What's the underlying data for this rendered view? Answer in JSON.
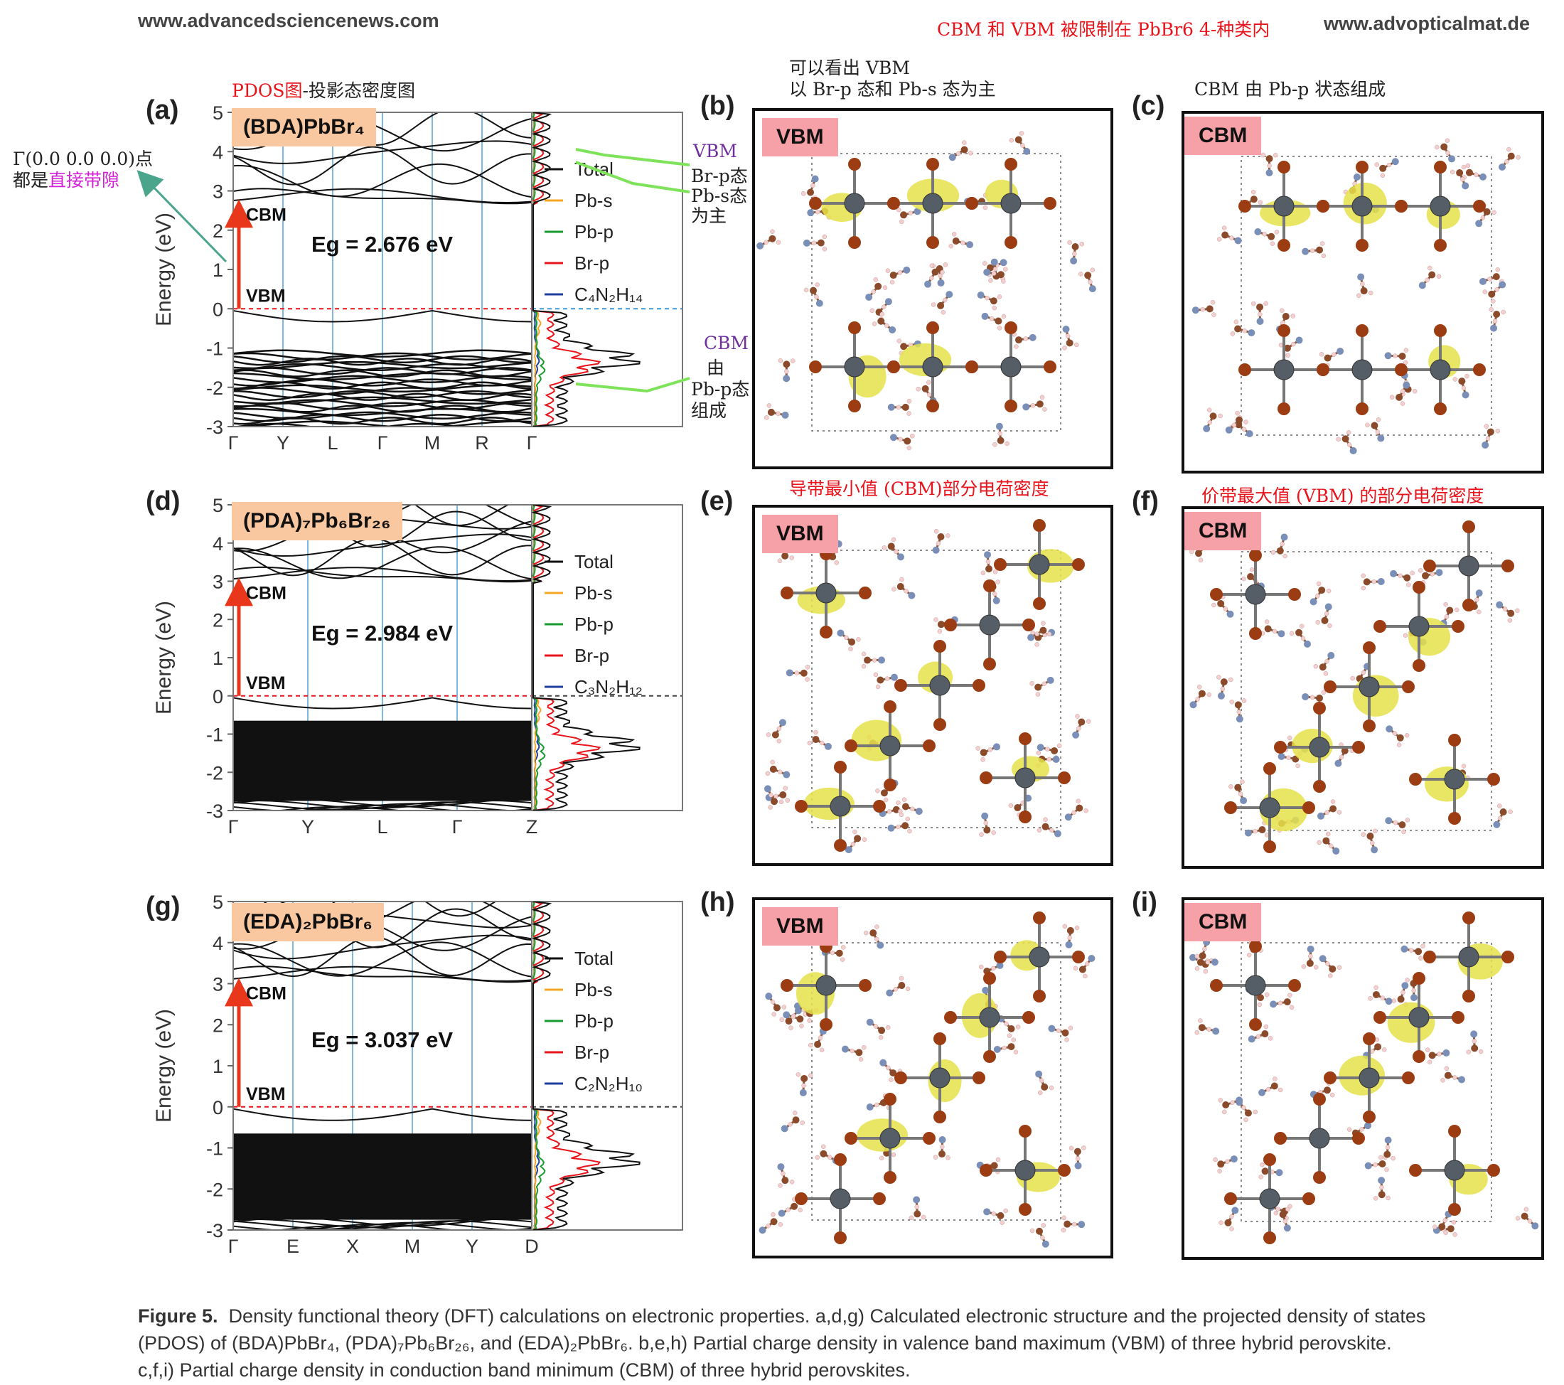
{
  "header": {
    "left_url": "www.advancedsciencenews.com",
    "right_url": "www.advopticalmat.de",
    "annotation_top": "CBM 和 VBM 被限制在 PbBr6 4-种类内"
  },
  "annotations": {
    "pdos_title_red": "PDOS图",
    "pdos_title_rest": "-投影态密度图",
    "gamma_line1": "Γ(0.0 0.0 0.0)点",
    "gamma_line2_prefix": "都是",
    "gamma_line2_highlight": "直接带隙",
    "vbm_note_line1": "可以看出 VBM",
    "vbm_note_line2": "以 Br-p 态和 Pb-s 态为主",
    "cbm_note": "CBM 由 Pb-p 状态组成",
    "side_vbm": "VBM",
    "side_vbm_l1": "Br-p态",
    "side_vbm_l2": "Pb-s态",
    "side_vbm_l3": "为主",
    "side_cbm": "CBM",
    "side_cbm_l1": "由",
    "side_cbm_l2": "Pb-p态",
    "side_cbm_l3": "组成",
    "cbm_charge_note": "导带最小值 (CBM)部分电荷密度",
    "vbm_charge_note": "价带最大值 (VBM) 的部分电荷密度"
  },
  "panels": {
    "a": {
      "label": "(a)",
      "compound": "(BDA)PbBr₄",
      "eg": "Eg = 2.676 eV",
      "cbm_label": "CBM",
      "vbm_label": "VBM",
      "ylabel": "Energy (eV)"
    },
    "b": {
      "label": "(b)",
      "badge": "VBM"
    },
    "c": {
      "label": "(c)",
      "badge": "CBM"
    },
    "d": {
      "label": "(d)",
      "compound": "(PDA)₇Pb₆Br₂₆",
      "eg": "Eg = 2.984 eV",
      "cbm_label": "CBM",
      "vbm_label": "VBM",
      "ylabel": "Energy (eV)"
    },
    "e": {
      "label": "(e)",
      "badge": "VBM"
    },
    "f": {
      "label": "(f)",
      "badge": "CBM"
    },
    "g": {
      "label": "(g)",
      "compound": "(EDA)₂PbBr₆",
      "eg": "Eg = 3.037 eV",
      "cbm_label": "CBM",
      "vbm_label": "VBM",
      "ylabel": "Energy (eV)"
    },
    "h": {
      "label": "(h)",
      "badge": "VBM"
    },
    "i": {
      "label": "(i)",
      "badge": "CBM"
    }
  },
  "chart_data": [
    {
      "type": "line",
      "panel": "a",
      "ylabel": "Energy (eV)",
      "ylim": [
        -3,
        5
      ],
      "yticks": [
        "5",
        "4",
        "3",
        "2",
        "1",
        "0",
        "-1",
        "-2",
        "-3"
      ],
      "kpoints": [
        "Γ",
        "Y",
        "L",
        "Γ",
        "M",
        "R",
        "Γ"
      ],
      "band_gap_eV": 2.676,
      "cbm_eV": 2.676,
      "vbm_eV": 0,
      "legend": [
        "Total",
        "Pb-s",
        "Pb-p",
        "Br-p",
        "C₄N₂H₁₄"
      ]
    },
    {
      "type": "line",
      "panel": "d",
      "ylabel": "Energy (eV)",
      "ylim": [
        -3,
        5
      ],
      "yticks": [
        "5",
        "4",
        "3",
        "2",
        "1",
        "0",
        "-1",
        "-2",
        "-3"
      ],
      "kpoints": [
        "Γ",
        "Y",
        "L",
        "Γ",
        "Z"
      ],
      "band_gap_eV": 2.984,
      "cbm_eV": 2.984,
      "vbm_eV": 0,
      "legend": [
        "Total",
        "Pb-s",
        "Pb-p",
        "Br-p",
        "C₃N₂H₁₂"
      ]
    },
    {
      "type": "line",
      "panel": "g",
      "ylabel": "Energy (eV)",
      "ylim": [
        -3,
        5
      ],
      "yticks": [
        "5",
        "4",
        "3",
        "2",
        "1",
        "0",
        "-1",
        "-2",
        "-3"
      ],
      "kpoints": [
        "Γ",
        "E",
        "X",
        "M",
        "Y",
        "D"
      ],
      "band_gap_eV": 3.037,
      "cbm_eV": 3.037,
      "vbm_eV": 0,
      "legend": [
        "Total",
        "Pb-s",
        "Pb-p",
        "Br-p",
        "C₂N₂H₁₀"
      ]
    }
  ],
  "colors": {
    "total": "#111111",
    "pb_s": "#f5a623",
    "pb_p": "#1a9b2f",
    "br_p": "#e8141b",
    "organic": "#1f3fa0",
    "cbm_arrow": "#e8371b",
    "kline": "#7fb9de",
    "charge": "#e6e24a",
    "pb_atom": "#555e66",
    "br_atom": "#9b3c12"
  },
  "caption": {
    "figure": "Figure 5.",
    "line1": "Density functional theory (DFT) calculations on electronic properties. a,d,g) Calculated electronic structure and the projected density of states",
    "line2": "(PDOS) of (BDA)PbBr₄, (PDA)₇Pb₆Br₂₆, and (EDA)₂PbBr₆. b,e,h) Partial charge density in valence band maximum (VBM) of three hybrid perovskite.",
    "line3": "c,f,i) Partial charge density in conduction band minimum (CBM) of three hybrid perovskites."
  }
}
